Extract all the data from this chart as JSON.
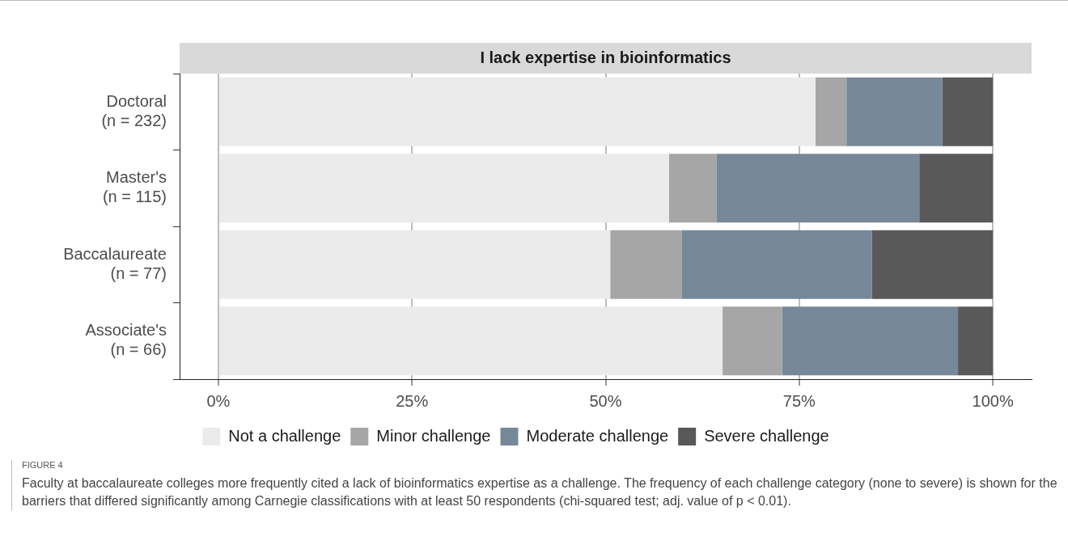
{
  "chart_data": {
    "type": "bar",
    "orientation": "horizontal",
    "stacked": true,
    "title": "I lack expertise in bioinformatics",
    "categories": [
      "Doctoral\n(n = 232)",
      "Master's\n(n = 115)",
      "Baccalaureate\n(n = 77)",
      "Associate's\n(n = 66)"
    ],
    "series": [
      {
        "name": "Not a challenge",
        "color": "#ebebeb",
        "values": [
          77.1,
          58.2,
          50.6,
          65.1
        ]
      },
      {
        "name": "Minor challenge",
        "color": "#a6a6a6",
        "values": [
          4.0,
          6.1,
          9.2,
          7.7
        ]
      },
      {
        "name": "Moderate challenge",
        "color": "#778899",
        "values": [
          12.4,
          26.2,
          24.6,
          22.7
        ]
      },
      {
        "name": "Severe challenge",
        "color": "#595959",
        "values": [
          6.5,
          9.5,
          15.6,
          4.5
        ]
      }
    ],
    "xlim": [
      -5,
      105
    ],
    "xticks": [
      {
        "value": 0,
        "label": "0%"
      },
      {
        "value": 25,
        "label": "25%"
      },
      {
        "value": 50,
        "label": "50%"
      },
      {
        "value": 75,
        "label": "75%"
      },
      {
        "value": 100,
        "label": "100%"
      }
    ],
    "grid": "x",
    "legend": "bottom",
    "annotations": [
      "FIGURE 4",
      "Faculty at baccalaureate colleges more frequently cited a lack of bioinformatics expertise as a challenge. The frequency of each challenge category (none to severe) is shown for the barriers that differed significantly among Carnegie classifications with at least 50 respondents (chi-squared test; adj. value of p < 0.01)."
    ]
  }
}
